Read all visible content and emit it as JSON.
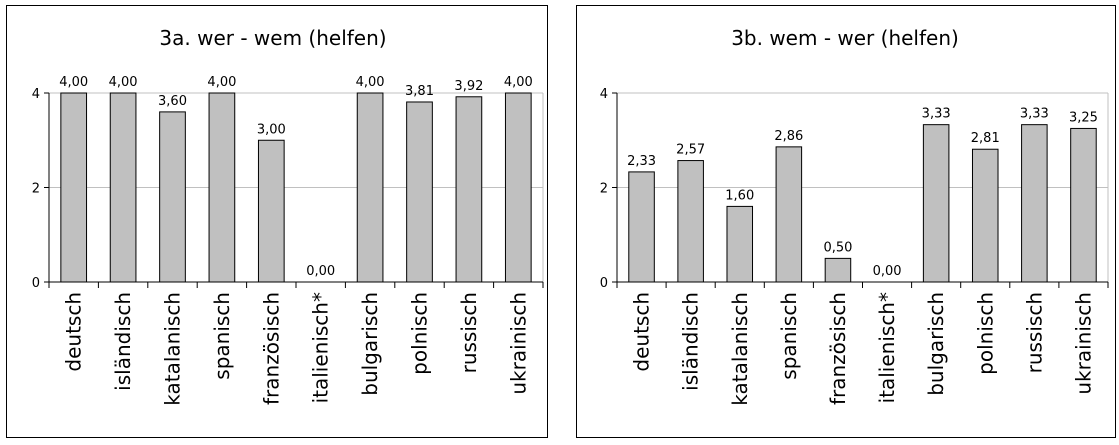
{
  "chart_data": [
    {
      "type": "bar",
      "title": "3a. wer - wem (helfen)",
      "categories": [
        "deutsch",
        "isländisch",
        "katalanisch",
        "spanisch",
        "französisch",
        "italienisch*",
        "bulgarisch",
        "polnisch",
        "russisch",
        "ukrainisch"
      ],
      "values": [
        4.0,
        4.0,
        3.6,
        4.0,
        3.0,
        0.0,
        4.0,
        3.81,
        3.92,
        4.0
      ],
      "value_labels": [
        "4,00",
        "4,00",
        "3,60",
        "4,00",
        "3,00",
        "0,00",
        "4,00",
        "3,81",
        "3,92",
        "4,00"
      ],
      "yticks": [
        "0",
        "2",
        "4"
      ],
      "ylim": [
        0,
        4
      ],
      "grid": true,
      "bar_color": "#c0c0c0"
    },
    {
      "type": "bar",
      "title": "3b. wem - wer (helfen)",
      "categories": [
        "deutsch",
        "isländisch",
        "katalanisch",
        "spanisch",
        "französisch",
        "italienisch*",
        "bulgarisch",
        "polnisch",
        "russisch",
        "ukrainisch"
      ],
      "values": [
        2.33,
        2.57,
        1.6,
        2.86,
        0.5,
        0.0,
        3.33,
        2.81,
        3.33,
        3.25
      ],
      "value_labels": [
        "2,33",
        "2,57",
        "1,60",
        "2,86",
        "0,50",
        "0,00",
        "3,33",
        "2,81",
        "3,33",
        "3,25"
      ],
      "yticks": [
        "0",
        "2",
        "4"
      ],
      "ylim": [
        0,
        4
      ],
      "grid": true,
      "bar_color": "#c0c0c0"
    }
  ]
}
